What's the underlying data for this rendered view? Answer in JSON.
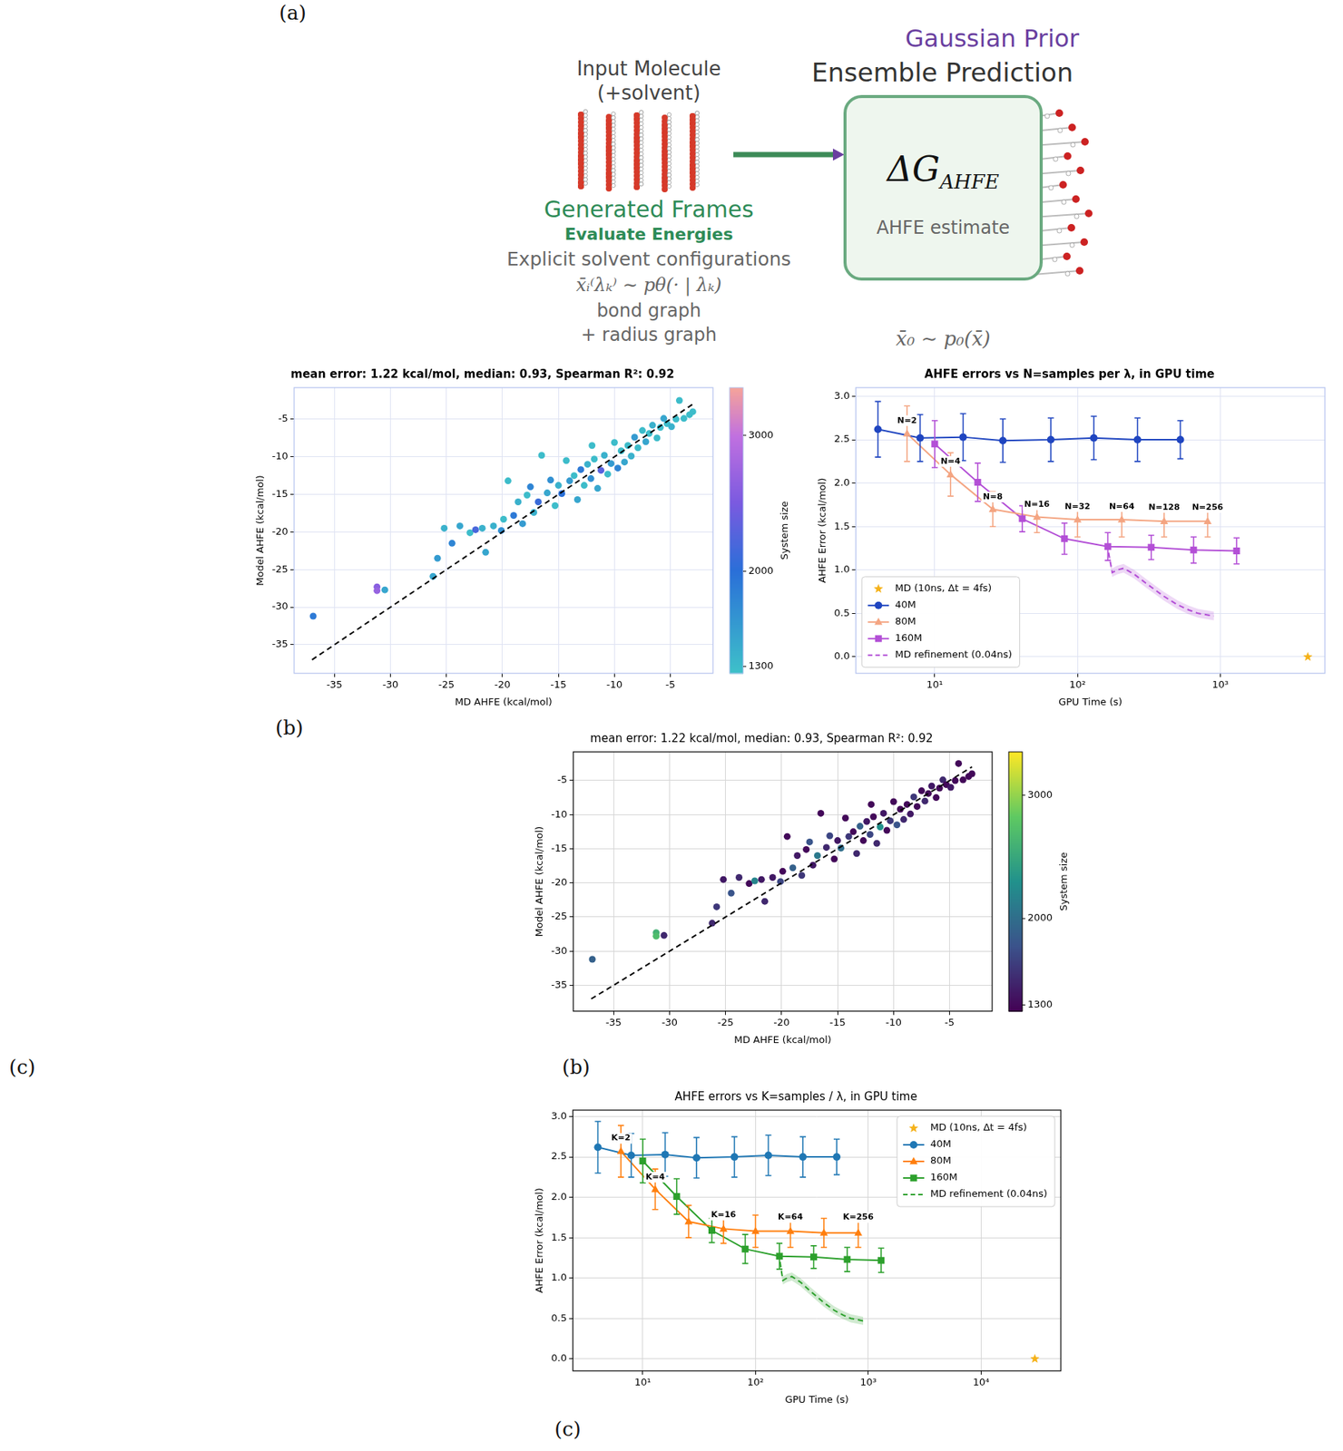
{
  "panel_labels": [
    "(a)",
    "(b)",
    "(c)",
    "(b)",
    "(c)"
  ],
  "diagram": {
    "input_title": [
      "Input Molecule",
      "(+solvent)"
    ],
    "frame_labels": [
      "Generated Frames",
      "Evaluate Energies"
    ],
    "left_captions": [
      "Explicit solvent configurations",
      "x̄ᵢ⁽λₖ⁾ ∼ pθ(· | λₖ)",
      "bond graph",
      "+ radius graph"
    ],
    "prior_label": "Gaussian Prior",
    "output_title": "Ensemble Prediction",
    "box_symbol": "ΔG",
    "box_symbol_sub": "AHFE",
    "box_caption": "AHFE estimate",
    "prior_sample": "x̄₀ ∼ p₀(x̄)"
  },
  "chart_data": [
    {
      "type": "scatter",
      "title": "mean error: 1.22 kcal/mol, median: 0.93, Spearman R²: 0.92",
      "x_label": "MD AHFE (kcal/mol)",
      "y_label": "Model AHFE (kcal/mol)",
      "grid": true,
      "xlim": [
        -38.6,
        -1.2
      ],
      "xticks": [
        -35,
        -30,
        -25,
        -20,
        -15,
        -10,
        -5
      ],
      "ylim": [
        -38.8,
        -0.8
      ],
      "yticks": [
        -35,
        -30,
        -25,
        -20,
        -15,
        -10,
        -5
      ],
      "x": [
        -36.9,
        -31.2,
        -31.2,
        -30.5,
        -26.2,
        -25.8,
        -25.2,
        -24.5,
        -23.8,
        -22.9,
        -22.4,
        -21.8,
        -21.5,
        -20.8,
        -20.1,
        -19.9,
        -19.5,
        -19.0,
        -18.6,
        -18.2,
        -17.8,
        -17.5,
        -17.2,
        -16.8,
        -16.5,
        -16.0,
        -15.7,
        -15.3,
        -15.0,
        -14.7,
        -14.3,
        -14.0,
        -13.6,
        -13.3,
        -13.0,
        -12.7,
        -12.4,
        -12.1,
        -11.8,
        -11.5,
        -11.2,
        -10.9,
        -10.6,
        -10.3,
        -10.0,
        -9.7,
        -9.4,
        -9.1,
        -8.8,
        -8.5,
        -8.2,
        -7.9,
        -7.5,
        -7.2,
        -6.9,
        -6.6,
        -6.2,
        -5.9,
        -5.6,
        -5.3,
        -4.9,
        -4.5,
        -4.2,
        -3.8,
        -3.3,
        -3.0,
        -12.0
      ],
      "values": [
        -31.2,
        -27.3,
        -27.8,
        -27.7,
        -25.9,
        -23.5,
        -19.5,
        -21.5,
        -19.2,
        -20.1,
        -19.7,
        -19.5,
        -22.7,
        -19.2,
        -19.8,
        -18.3,
        -13.2,
        -17.8,
        -16.0,
        -18.9,
        -15.1,
        -14.0,
        -17.4,
        -16.0,
        -9.8,
        -14.8,
        -13.1,
        -16.5,
        -13.8,
        -14.9,
        -10.5,
        -13.2,
        -12.5,
        -15.7,
        -11.7,
        -13.8,
        -11.0,
        -12.9,
        -10.3,
        -14.2,
        -11.8,
        -9.8,
        -12.3,
        -10.9,
        -8.1,
        -11.5,
        -9.2,
        -10.7,
        -8.5,
        -9.9,
        -7.4,
        -8.8,
        -6.5,
        -8.0,
        -6.9,
        -5.8,
        -7.5,
        -6.1,
        -4.9,
        -5.6,
        -6.0,
        -5.0,
        -2.5,
        -4.9,
        -4.4,
        -4.0,
        -8.5
      ],
      "system_size": [
        1900,
        2600,
        2700,
        1500,
        1500,
        1600,
        1400,
        1800,
        1500,
        1300,
        2200,
        1400,
        1500,
        1400,
        1700,
        1300,
        1300,
        1900,
        1400,
        1600,
        1300,
        1800,
        1400,
        2100,
        1300,
        1500,
        1700,
        1300,
        1400,
        2000,
        1300,
        1600,
        1300,
        1500,
        1900,
        1300,
        1400,
        1700,
        1300,
        1500,
        2300,
        1400,
        1300,
        1600,
        1300,
        1800,
        1300,
        1500,
        1300,
        1400,
        1600,
        1300,
        1300,
        1500,
        1300,
        1400,
        1300,
        1300,
        1500,
        1300,
        1400,
        1300,
        1300,
        1300,
        1300,
        1300,
        1300
      ],
      "colorbar": {
        "label": "System size",
        "lim": [
          1250,
          3350
        ],
        "ticks": [
          1300,
          2000,
          3000
        ]
      },
      "reference_line": {
        "x": [
          -37,
          -3
        ],
        "values": [
          -37,
          -3
        ],
        "line_style": "dashed",
        "color": "#000000"
      }
    },
    {
      "type": "line",
      "title": "AHFE errors vs N=samples per λ, in GPU time",
      "x_label": "GPU Time (s)",
      "y_label": "AHFE Error (kcal/mol)",
      "log": "x",
      "grid": true,
      "legend": "lower left",
      "xlim": [
        2.8,
        5400
      ],
      "xticks": [
        {
          "value": 10,
          "label": "10¹"
        },
        {
          "value": 100,
          "label": "10²"
        },
        {
          "value": 1000,
          "label": "10³"
        }
      ],
      "ylim": [
        -0.19,
        3.1
      ],
      "yticks": [
        {
          "value": 0,
          "label": "0.0"
        },
        0.5,
        {
          "value": 1,
          "label": "1.0"
        },
        1.5,
        {
          "value": 2,
          "label": "2.0"
        },
        2.5,
        {
          "value": 3,
          "label": "3.0"
        }
      ],
      "series": [
        {
          "name": "MD (10ns, Δt = 4fs)",
          "type": "scatter",
          "marker": "star",
          "color": "#f5b21a",
          "x": [
            4100
          ],
          "values": [
            0.0
          ]
        },
        {
          "name": "40M",
          "marker": "circle",
          "line_style": "solid",
          "color": "#1f45c0",
          "x": [
            4,
            7.9,
            15.8,
            30,
            65,
            130,
            263,
            525
          ],
          "values": [
            2.62,
            2.52,
            2.53,
            2.49,
            2.5,
            2.52,
            2.5,
            2.5
          ],
          "errors": [
            0.32,
            0.27,
            0.27,
            0.25,
            0.25,
            0.25,
            0.25,
            0.22
          ]
        },
        {
          "name": "80M",
          "marker": "triangle",
          "line_style": "solid",
          "color": "#f4a582",
          "x": [
            6.4,
            12.9,
            25.5,
            52,
            100,
            204,
            404,
            815
          ],
          "values": [
            2.57,
            2.1,
            1.7,
            1.61,
            1.58,
            1.58,
            1.56,
            1.56
          ],
          "errors": [
            0.32,
            0.25,
            0.2,
            0.18,
            0.2,
            0.2,
            0.18,
            0.18
          ]
        },
        {
          "name": "160M",
          "marker": "square",
          "line_style": "solid",
          "color": "#b34fd6",
          "x": [
            10,
            20,
            41,
            81,
            163,
            328,
            650,
            1300
          ],
          "values": [
            2.45,
            2.01,
            1.59,
            1.36,
            1.27,
            1.26,
            1.23,
            1.22
          ],
          "errors": [
            0.27,
            0.22,
            0.15,
            0.18,
            0.16,
            0.14,
            0.15,
            0.15
          ]
        },
        {
          "name": "MD refinement (0.04ns)",
          "marker": "none",
          "line_style": "dashed",
          "color": "#b34fd6",
          "x": [
            165,
            175,
            190,
            210,
            250,
            300,
            400,
            500,
            600,
            700,
            900
          ],
          "values": [
            1.2,
            0.97,
            1.0,
            1.02,
            0.95,
            0.85,
            0.7,
            0.6,
            0.54,
            0.5,
            0.47
          ],
          "errors": [
            0.05,
            0.05,
            0.05,
            0.05,
            0.05,
            0.05,
            0.05,
            0.05,
            0.05,
            0.05,
            0.05
          ]
        }
      ],
      "annotations": [
        {
          "text": "N=2",
          "x": 6.4,
          "y": 2.72
        },
        {
          "text": "N=4",
          "x": 12.9,
          "y": 2.25
        },
        {
          "text": "N=8",
          "x": 25.5,
          "y": 1.84
        },
        {
          "text": "N=16",
          "x": 52,
          "y": 1.75
        },
        {
          "text": "N=32",
          "x": 100,
          "y": 1.73
        },
        {
          "text": "N=64",
          "x": 204,
          "y": 1.73
        },
        {
          "text": "N=128",
          "x": 404,
          "y": 1.72
        },
        {
          "text": "N=256",
          "x": 815,
          "y": 1.72
        }
      ]
    },
    {
      "type": "scatter",
      "title": "mean error: 1.22 kcal/mol, median: 0.93, Spearman R²: 0.92",
      "x_label": "MD AHFE (kcal/mol)",
      "y_label": "Model AHFE (kcal/mol)",
      "grid": true,
      "xlim": [
        -38.6,
        -1.2
      ],
      "xticks": [
        -35,
        -30,
        -25,
        -20,
        -15,
        -10,
        -5
      ],
      "ylim": [
        -38.8,
        -0.8
      ],
      "yticks": [
        -35,
        -30,
        -25,
        -20,
        -15,
        -10,
        -5
      ],
      "x": [
        -36.9,
        -31.2,
        -31.2,
        -30.5,
        -26.2,
        -25.8,
        -25.2,
        -24.5,
        -23.8,
        -22.9,
        -22.4,
        -21.8,
        -21.5,
        -20.8,
        -20.1,
        -19.9,
        -19.5,
        -19.0,
        -18.6,
        -18.2,
        -17.8,
        -17.5,
        -17.2,
        -16.8,
        -16.5,
        -16.0,
        -15.7,
        -15.3,
        -15.0,
        -14.7,
        -14.3,
        -14.0,
        -13.6,
        -13.3,
        -13.0,
        -12.7,
        -12.4,
        -12.1,
        -11.8,
        -11.5,
        -11.2,
        -10.9,
        -10.6,
        -10.3,
        -10.0,
        -9.7,
        -9.4,
        -9.1,
        -8.8,
        -8.5,
        -8.2,
        -7.9,
        -7.5,
        -7.2,
        -6.9,
        -6.6,
        -6.2,
        -5.9,
        -5.6,
        -5.3,
        -4.9,
        -4.5,
        -4.2,
        -3.8,
        -3.3,
        -3.0,
        -12.0
      ],
      "values": [
        -31.2,
        -27.3,
        -27.8,
        -27.7,
        -25.9,
        -23.5,
        -19.5,
        -21.5,
        -19.2,
        -20.1,
        -19.7,
        -19.5,
        -22.7,
        -19.2,
        -19.8,
        -18.3,
        -13.2,
        -17.8,
        -16.0,
        -18.9,
        -15.1,
        -14.0,
        -17.4,
        -16.0,
        -9.8,
        -14.8,
        -13.1,
        -16.5,
        -13.8,
        -14.9,
        -10.5,
        -13.2,
        -12.5,
        -15.7,
        -11.7,
        -13.8,
        -11.0,
        -12.9,
        -10.3,
        -14.2,
        -11.8,
        -9.8,
        -12.3,
        -10.9,
        -8.1,
        -11.5,
        -9.2,
        -10.7,
        -8.5,
        -9.9,
        -7.4,
        -8.8,
        -6.5,
        -8.0,
        -6.9,
        -5.8,
        -7.5,
        -6.1,
        -4.9,
        -5.6,
        -6.0,
        -5.0,
        -2.5,
        -4.9,
        -4.4,
        -4.0,
        -8.5
      ],
      "system_size": [
        1900,
        2600,
        2700,
        1500,
        1500,
        1600,
        1400,
        1800,
        1500,
        1300,
        2200,
        1400,
        1500,
        1400,
        1700,
        1300,
        1300,
        1900,
        1400,
        1600,
        1300,
        1800,
        1400,
        2100,
        1300,
        1500,
        1700,
        1300,
        1400,
        2000,
        1300,
        1600,
        1300,
        1500,
        1900,
        1300,
        1400,
        1700,
        1300,
        1500,
        2300,
        1400,
        1300,
        1600,
        1300,
        1800,
        1300,
        1500,
        1300,
        1400,
        1600,
        1300,
        1300,
        1500,
        1300,
        1400,
        1300,
        1300,
        1500,
        1300,
        1400,
        1300,
        1300,
        1300,
        1300,
        1300,
        1300
      ],
      "colorbar": {
        "label": "System size",
        "lim": [
          1250,
          3350
        ],
        "ticks": [
          1300,
          2000,
          3000
        ]
      },
      "reference_line": {
        "x": [
          -37,
          -3
        ],
        "values": [
          -37,
          -3
        ],
        "line_style": "dashed",
        "color": "#000000"
      }
    },
    {
      "type": "line",
      "title": "AHFE errors vs K=samples / λ, in GPU time",
      "x_label": "GPU Time (s)",
      "y_label": "AHFE Error (kcal/mol)",
      "log": "x",
      "grid": true,
      "legend": "upper right",
      "xlim": [
        2.4,
        51000
      ],
      "xticks": [
        {
          "value": 10,
          "label": "10¹"
        },
        {
          "value": 100,
          "label": "10²"
        },
        {
          "value": 1000,
          "label": "10³"
        },
        {
          "value": 10000,
          "label": "10⁴"
        }
      ],
      "ylim": [
        -0.15,
        3.08
      ],
      "yticks": [
        {
          "value": 0,
          "label": "0.0"
        },
        0.5,
        {
          "value": 1,
          "label": "1.0"
        },
        1.5,
        {
          "value": 2,
          "label": "2.0"
        },
        2.5,
        {
          "value": 3,
          "label": "3.0"
        }
      ],
      "series": [
        {
          "name": "MD (10ns, Δt = 4fs)",
          "type": "scatter",
          "marker": "star",
          "color": "#f5b21a",
          "x": [
            30000
          ],
          "values": [
            0.0
          ]
        },
        {
          "name": "40M",
          "marker": "circle",
          "line_style": "solid",
          "color": "#1f77b4",
          "x": [
            4,
            7.9,
            15.8,
            30,
            65,
            130,
            263,
            525
          ],
          "values": [
            2.62,
            2.52,
            2.53,
            2.49,
            2.5,
            2.52,
            2.5,
            2.5
          ],
          "errors": [
            0.32,
            0.27,
            0.27,
            0.25,
            0.25,
            0.25,
            0.25,
            0.22
          ]
        },
        {
          "name": "80M",
          "marker": "triangle",
          "line_style": "solid",
          "color": "#ff7f0e",
          "x": [
            6.4,
            12.9,
            25.5,
            52,
            100,
            204,
            404,
            815
          ],
          "values": [
            2.57,
            2.1,
            1.7,
            1.61,
            1.58,
            1.58,
            1.56,
            1.56
          ],
          "errors": [
            0.32,
            0.25,
            0.2,
            0.18,
            0.2,
            0.2,
            0.18,
            0.18
          ]
        },
        {
          "name": "160M",
          "marker": "square",
          "line_style": "solid",
          "color": "#2ca02c",
          "x": [
            10,
            20,
            41,
            81,
            163,
            328,
            650,
            1300
          ],
          "values": [
            2.45,
            2.01,
            1.59,
            1.36,
            1.27,
            1.26,
            1.23,
            1.22
          ],
          "errors": [
            0.27,
            0.22,
            0.15,
            0.18,
            0.16,
            0.14,
            0.15,
            0.15
          ]
        },
        {
          "name": "MD refinement (0.04ns)",
          "marker": "none",
          "line_style": "dashed",
          "color": "#2ca02c",
          "x": [
            165,
            175,
            190,
            210,
            250,
            300,
            400,
            500,
            600,
            700,
            900
          ],
          "values": [
            1.2,
            0.97,
            1.0,
            1.02,
            0.95,
            0.85,
            0.7,
            0.6,
            0.54,
            0.5,
            0.47
          ],
          "errors": [
            0.05,
            0.05,
            0.05,
            0.05,
            0.05,
            0.05,
            0.05,
            0.05,
            0.05,
            0.05,
            0.05
          ]
        }
      ],
      "annotations": [
        {
          "text": "K=2",
          "x": 6.4,
          "y": 2.73
        },
        {
          "text": "K=4",
          "x": 12.9,
          "y": 2.25
        },
        {
          "text": "K=16",
          "x": 52,
          "y": 1.78
        },
        {
          "text": "K=64",
          "x": 204,
          "y": 1.75
        },
        {
          "text": "K=256",
          "x": 815,
          "y": 1.75
        }
      ]
    }
  ]
}
